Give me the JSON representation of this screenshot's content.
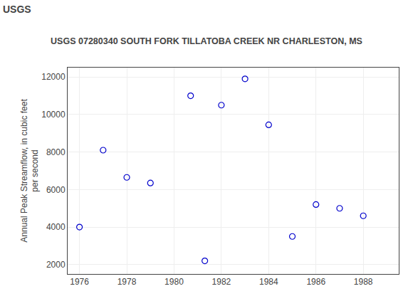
{
  "chart_data": {
    "type": "scatter",
    "title": "USGS 07280340 SOUTH FORK TILLATOBA CREEK NR CHARLESTON, MS",
    "annotations": [
      {
        "text": "USGS"
      }
    ],
    "ylabel": "Annual Peak Streamflow, in cubic feet\nper second",
    "x": [
      1976,
      1977,
      1978,
      1979,
      1980.7,
      1981.3,
      1982,
      1983,
      1984,
      1985,
      1986,
      1987,
      1988
    ],
    "values": [
      4000,
      8100,
      6650,
      6350,
      11000,
      2200,
      10500,
      11900,
      9450,
      3500,
      5200,
      5000,
      4600
    ],
    "color": "#0000CC",
    "marker": "circle-open",
    "xlim": [
      1975.5,
      1989.5
    ],
    "ylim": [
      1500,
      12500
    ],
    "xticks": [
      1976,
      1978,
      1980,
      1982,
      1984,
      1986,
      1988
    ],
    "yticks": [
      2000,
      4000,
      6000,
      8000,
      10000,
      12000
    ],
    "grid": true
  }
}
